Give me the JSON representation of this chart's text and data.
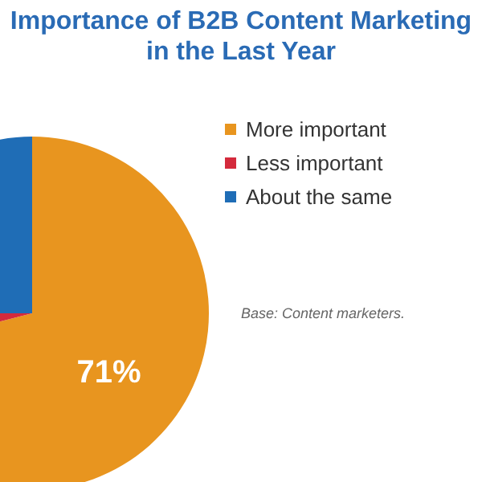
{
  "chart_data": {
    "type": "pie",
    "title": "Importance of B2B Content Marketing in the Last Year",
    "categories": [
      "More important",
      "Less important",
      "About the same"
    ],
    "values": [
      71,
      4,
      25
    ],
    "colors": [
      "#e8951f",
      "#d42a3c",
      "#1f6db6"
    ],
    "value_labels": [
      "71%",
      null,
      null
    ],
    "legend": "top right",
    "annotations": [
      "Base: Content marketers."
    ]
  }
}
